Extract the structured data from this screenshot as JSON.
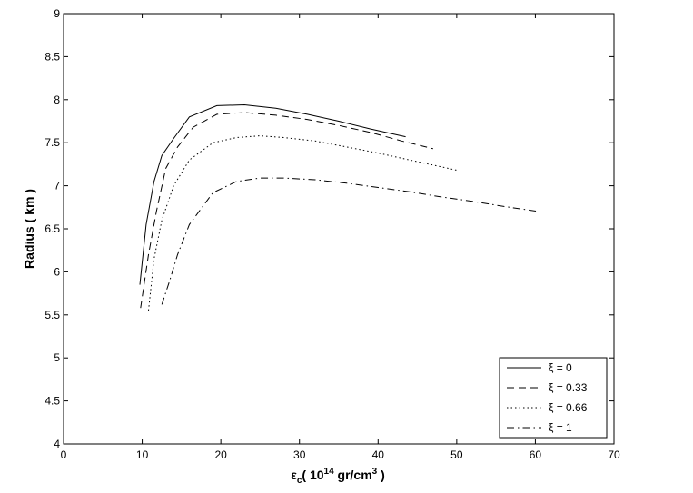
{
  "chart_data": {
    "type": "line",
    "title": "",
    "xlabel_symbol": "ε",
    "xlabel_sub": "c",
    "xlabel_pre": "( 10",
    "xlabel_exp1": "14",
    "xlabel_mid": " gr/cm",
    "xlabel_exp2": "3",
    "xlabel_post": " )",
    "ylabel": "Radius ( km )",
    "xlim": [
      0,
      70
    ],
    "ylim": [
      4,
      9
    ],
    "xticks": [
      0,
      10,
      20,
      30,
      40,
      50,
      60,
      70
    ],
    "yticks": [
      4,
      4.5,
      5,
      5.5,
      6,
      6.5,
      7,
      7.5,
      8,
      8.5,
      9
    ],
    "grid": false,
    "legend_position": "bottom-right",
    "series": [
      {
        "name": "ξ = 0",
        "dash": "solid",
        "x": [
          9.7,
          10.5,
          11.5,
          12.5,
          14.0,
          16.0,
          19.5,
          23.0,
          27.0,
          31.0,
          35.0,
          39.0,
          43.5
        ],
        "y": [
          5.85,
          6.55,
          7.05,
          7.35,
          7.55,
          7.8,
          7.93,
          7.94,
          7.9,
          7.83,
          7.75,
          7.66,
          7.57
        ]
      },
      {
        "name": "ξ = 0.33",
        "dash": "dashed",
        "x": [
          9.8,
          10.8,
          11.8,
          13.0,
          14.5,
          16.5,
          19.5,
          23.0,
          27.0,
          31.0,
          35.0,
          39.0,
          43.0,
          47.0
        ],
        "y": [
          5.58,
          6.2,
          6.7,
          7.2,
          7.45,
          7.68,
          7.83,
          7.85,
          7.82,
          7.77,
          7.7,
          7.62,
          7.52,
          7.43
        ]
      },
      {
        "name": "ξ = 0.66",
        "dash": "dotted",
        "x": [
          10.8,
          11.5,
          12.5,
          14.0,
          16.0,
          19.0,
          22.0,
          25.0,
          28.0,
          32.0,
          36.0,
          40.0,
          44.0,
          48.0,
          50.0
        ],
        "y": [
          5.55,
          6.15,
          6.6,
          7.0,
          7.3,
          7.5,
          7.56,
          7.58,
          7.56,
          7.52,
          7.45,
          7.38,
          7.3,
          7.22,
          7.18
        ]
      },
      {
        "name": "ξ = 1",
        "dash": "dashdot",
        "x": [
          12.5,
          13.5,
          14.5,
          16.0,
          19.0,
          22.0,
          25.0,
          28.0,
          32.0,
          36.0,
          40.0,
          44.0,
          48.0,
          52.0,
          56.0,
          60.5
        ],
        "y": [
          5.62,
          5.9,
          6.2,
          6.55,
          6.92,
          7.05,
          7.09,
          7.09,
          7.07,
          7.03,
          6.98,
          6.93,
          6.87,
          6.82,
          6.76,
          6.7
        ]
      }
    ]
  }
}
